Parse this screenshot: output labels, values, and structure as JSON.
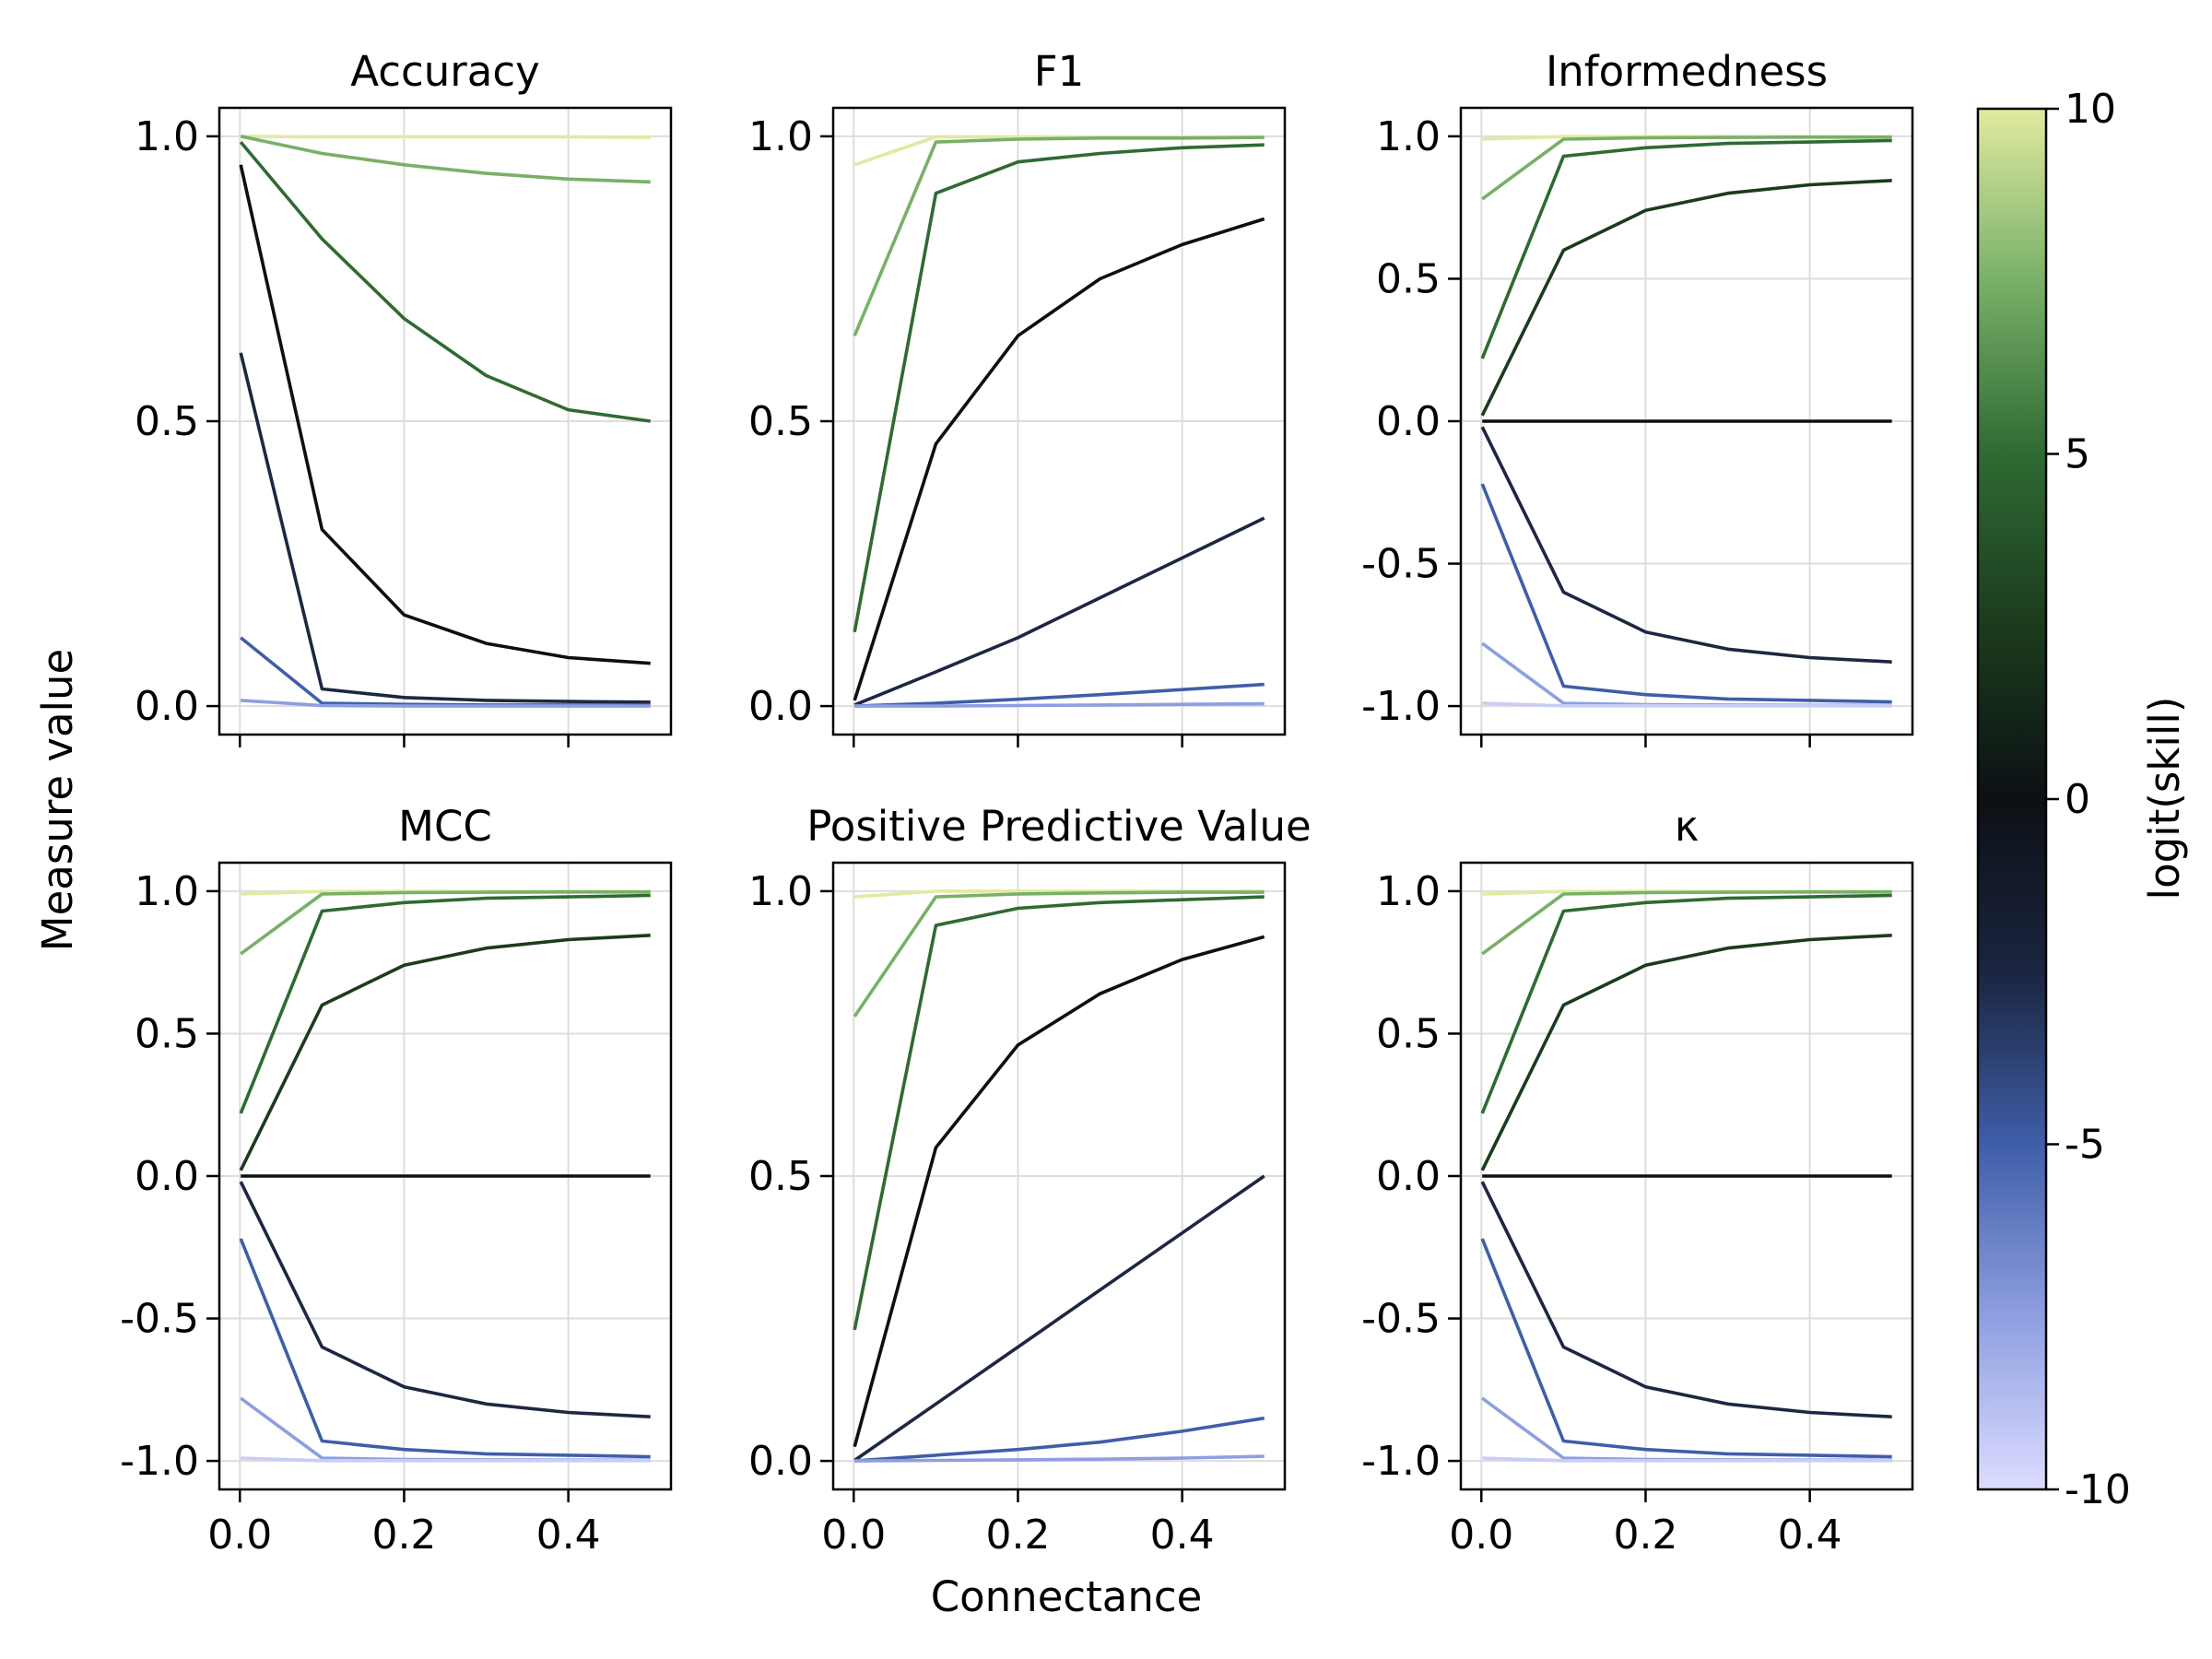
{
  "figure": {
    "ylabel": "Measure value",
    "xlabel": "Connectance"
  },
  "colorbar": {
    "label": "logit(skill)",
    "ticks": [
      "10",
      "5",
      "0",
      "-5",
      "-10"
    ],
    "range": [
      -10,
      10
    ],
    "colors": [
      "#dcdcff",
      "#8e9fe0",
      "#3f5ea8",
      "#1a2540",
      "#0c1014",
      "#1b3b1d",
      "#2f6a33",
      "#78b068",
      "#e2eaa0"
    ]
  },
  "chart_data": [
    {
      "type": "line",
      "title": "Accuracy",
      "xlim": [
        0,
        0.5
      ],
      "ylim": [
        -0.05,
        1.05
      ],
      "yticks": [
        "1.0",
        "0.5",
        "0.0"
      ],
      "ytick_values": [
        1,
        0.5,
        0
      ],
      "xticks": [],
      "xtick_values": [],
      "x": [
        0.001,
        0.1,
        0.2,
        0.3,
        0.4,
        0.5
      ],
      "series": [
        {
          "values": [
            1.0,
            0.999,
            0.999,
            0.999,
            0.999,
            0.998
          ]
        },
        {
          "values": [
            1.0,
            0.97,
            0.95,
            0.935,
            0.925,
            0.92
          ]
        },
        {
          "values": [
            0.99,
            0.82,
            0.68,
            0.58,
            0.52,
            0.5
          ]
        },
        {
          "values": [
            0.95,
            0.31,
            0.16,
            0.11,
            0.085,
            0.075
          ]
        },
        {
          "values": [
            0.62,
            0.03,
            0.015,
            0.01,
            0.008,
            0.007
          ]
        },
        {
          "values": [
            0.12,
            0.005,
            0.003,
            0.002,
            0.002,
            0.002
          ]
        },
        {
          "values": [
            0.01,
            0.001,
            0.0,
            0.0,
            0.0,
            0.0
          ]
        }
      ]
    },
    {
      "type": "line",
      "title": "F1",
      "xlim": [
        0,
        0.5
      ],
      "ylim": [
        -0.05,
        1.05
      ],
      "yticks": [
        "1.0",
        "0.5",
        "0.0"
      ],
      "ytick_values": [
        1,
        0.5,
        0
      ],
      "xticks": [],
      "xtick_values": [],
      "x": [
        0.001,
        0.1,
        0.2,
        0.3,
        0.4,
        0.5
      ],
      "series": [
        {
          "values": [
            0.95,
            0.999,
            0.999,
            0.999,
            0.999,
            0.999
          ]
        },
        {
          "values": [
            0.65,
            0.99,
            0.995,
            0.997,
            0.997,
            0.998
          ]
        },
        {
          "values": [
            0.13,
            0.9,
            0.955,
            0.97,
            0.98,
            0.985
          ]
        },
        {
          "values": [
            0.01,
            0.46,
            0.65,
            0.75,
            0.81,
            0.855
          ]
        },
        {
          "values": [
            0.002,
            0.06,
            0.12,
            0.19,
            0.26,
            0.33
          ]
        },
        {
          "values": [
            0.0,
            0.005,
            0.012,
            0.02,
            0.029,
            0.038
          ]
        },
        {
          "values": [
            0.0,
            0.0,
            0.001,
            0.002,
            0.003,
            0.004
          ]
        }
      ]
    },
    {
      "type": "line",
      "title": "Informedness",
      "xlim": [
        0,
        0.5
      ],
      "ylim": [
        -1.1,
        1.1
      ],
      "yticks": [
        "1.0",
        "0.5",
        "0.0",
        "-0.5",
        "-1.0"
      ],
      "ytick_values": [
        1,
        0.5,
        0,
        -0.5,
        -1
      ],
      "xticks": [],
      "xtick_values": [],
      "x": [
        0.001,
        0.1,
        0.2,
        0.3,
        0.4,
        0.5
      ],
      "series": [
        {
          "values": [
            0.99,
            0.999,
            0.999,
            0.999,
            0.999,
            0.999
          ]
        },
        {
          "values": [
            0.78,
            0.99,
            0.995,
            0.996,
            0.997,
            0.997
          ]
        },
        {
          "values": [
            0.22,
            0.93,
            0.96,
            0.975,
            0.98,
            0.985
          ]
        },
        {
          "values": [
            0.02,
            0.6,
            0.74,
            0.8,
            0.83,
            0.845
          ]
        },
        {
          "values": [
            0.0,
            0.0,
            0.0,
            0.0,
            0.0,
            0.0
          ]
        },
        {
          "values": [
            -0.02,
            -0.6,
            -0.74,
            -0.8,
            -0.83,
            -0.845
          ]
        },
        {
          "values": [
            -0.22,
            -0.93,
            -0.96,
            -0.975,
            -0.98,
            -0.985
          ]
        },
        {
          "values": [
            -0.78,
            -0.99,
            -0.995,
            -0.996,
            -0.997,
            -0.997
          ]
        },
        {
          "values": [
            -0.99,
            -0.999,
            -0.999,
            -0.999,
            -0.999,
            -0.999
          ]
        }
      ]
    },
    {
      "type": "line",
      "title": "MCC",
      "xlim": [
        0,
        0.5
      ],
      "ylim": [
        -1.1,
        1.1
      ],
      "yticks": [
        "1.0",
        "0.5",
        "0.0",
        "-0.5",
        "-1.0"
      ],
      "ytick_values": [
        1,
        0.5,
        0,
        -0.5,
        -1
      ],
      "xticks": [
        "0.0",
        "0.2",
        "0.4"
      ],
      "xtick_values": [
        0,
        0.2,
        0.4
      ],
      "x": [
        0.001,
        0.1,
        0.2,
        0.3,
        0.4,
        0.5
      ],
      "series": [
        {
          "values": [
            0.99,
            0.999,
            0.999,
            0.999,
            0.999,
            0.999
          ]
        },
        {
          "values": [
            0.78,
            0.99,
            0.995,
            0.996,
            0.997,
            0.997
          ]
        },
        {
          "values": [
            0.22,
            0.93,
            0.96,
            0.975,
            0.98,
            0.985
          ]
        },
        {
          "values": [
            0.02,
            0.6,
            0.74,
            0.8,
            0.83,
            0.845
          ]
        },
        {
          "values": [
            0.0,
            0.0,
            0.0,
            0.0,
            0.0,
            0.0
          ]
        },
        {
          "values": [
            -0.02,
            -0.6,
            -0.74,
            -0.8,
            -0.83,
            -0.845
          ]
        },
        {
          "values": [
            -0.22,
            -0.93,
            -0.96,
            -0.975,
            -0.98,
            -0.985
          ]
        },
        {
          "values": [
            -0.78,
            -0.99,
            -0.995,
            -0.996,
            -0.997,
            -0.997
          ]
        },
        {
          "values": [
            -0.99,
            -0.999,
            -0.999,
            -0.999,
            -0.999,
            -0.999
          ]
        }
      ]
    },
    {
      "type": "line",
      "title": "Positive Predictive Value",
      "xlim": [
        0,
        0.5
      ],
      "ylim": [
        -0.05,
        1.05
      ],
      "yticks": [
        "1.0",
        "0.5",
        "0.0"
      ],
      "ytick_values": [
        1,
        0.5,
        0
      ],
      "xticks": [
        "0.0",
        "0.2",
        "0.4"
      ],
      "xtick_values": [
        0,
        0.2,
        0.4
      ],
      "x": [
        0.001,
        0.1,
        0.2,
        0.3,
        0.4,
        0.5
      ],
      "series": [
        {
          "values": [
            0.99,
            1.0,
            1.0,
            1.0,
            1.0,
            1.0
          ]
        },
        {
          "values": [
            0.78,
            0.99,
            0.995,
            0.997,
            0.998,
            0.998
          ]
        },
        {
          "values": [
            0.23,
            0.94,
            0.97,
            0.98,
            0.985,
            0.99
          ]
        },
        {
          "values": [
            0.025,
            0.55,
            0.73,
            0.82,
            0.88,
            0.92
          ]
        },
        {
          "values": [
            0.001,
            0.1,
            0.2,
            0.3,
            0.4,
            0.5
          ]
        },
        {
          "values": [
            0.0,
            0.01,
            0.02,
            0.033,
            0.052,
            0.075
          ]
        },
        {
          "values": [
            0.0,
            0.001,
            0.002,
            0.003,
            0.005,
            0.008
          ]
        }
      ]
    },
    {
      "type": "line",
      "title": "κ",
      "xlim": [
        0,
        0.5
      ],
      "ylim": [
        -1.1,
        1.1
      ],
      "yticks": [
        "1.0",
        "0.5",
        "0.0",
        "-0.5",
        "-1.0"
      ],
      "ytick_values": [
        1,
        0.5,
        0,
        -0.5,
        -1
      ],
      "xticks": [
        "0.0",
        "0.2",
        "0.4"
      ],
      "xtick_values": [
        0,
        0.2,
        0.4
      ],
      "x": [
        0.001,
        0.1,
        0.2,
        0.3,
        0.4,
        0.5
      ],
      "series": [
        {
          "values": [
            0.99,
            0.999,
            0.999,
            0.999,
            0.999,
            0.999
          ]
        },
        {
          "values": [
            0.78,
            0.99,
            0.995,
            0.996,
            0.997,
            0.997
          ]
        },
        {
          "values": [
            0.22,
            0.93,
            0.96,
            0.975,
            0.98,
            0.985
          ]
        },
        {
          "values": [
            0.02,
            0.6,
            0.74,
            0.8,
            0.83,
            0.845
          ]
        },
        {
          "values": [
            0.0,
            0.0,
            0.0,
            0.0,
            0.0,
            0.0
          ]
        },
        {
          "values": [
            -0.02,
            -0.6,
            -0.74,
            -0.8,
            -0.83,
            -0.845
          ]
        },
        {
          "values": [
            -0.22,
            -0.93,
            -0.96,
            -0.975,
            -0.98,
            -0.985
          ]
        },
        {
          "values": [
            -0.78,
            -0.99,
            -0.995,
            -0.996,
            -0.997,
            -0.997
          ]
        },
        {
          "values": [
            -0.99,
            -0.999,
            -0.999,
            -0.999,
            -0.999,
            -0.999
          ]
        }
      ]
    }
  ]
}
